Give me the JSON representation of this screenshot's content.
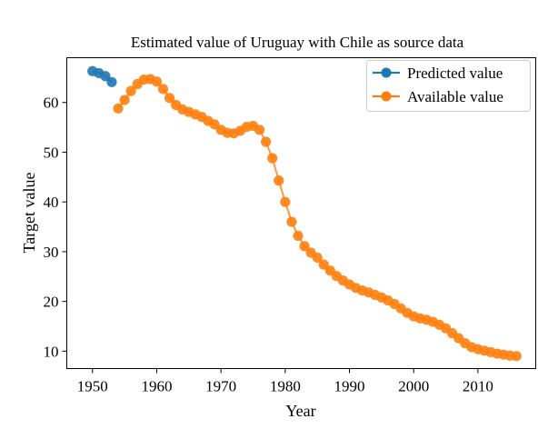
{
  "chart_data": {
    "type": "line",
    "title": "Estimated value of Uruguay with Chile as source data",
    "xlabel": "Year",
    "ylabel": "Target value",
    "xlim": [
      1946,
      2019
    ],
    "ylim": [
      6.5,
      69
    ],
    "xticks": [
      1950,
      1960,
      1970,
      1980,
      1990,
      2000,
      2010
    ],
    "yticks": [
      10,
      20,
      30,
      40,
      50,
      60
    ],
    "grid": false,
    "legend_position": "top-right",
    "series": [
      {
        "name": "Predicted value",
        "color": "#1f77b4",
        "marker": "circle",
        "x": [
          1950,
          1951,
          1952,
          1953
        ],
        "y": [
          66.3,
          65.9,
          65.3,
          64.1
        ]
      },
      {
        "name": "Available value",
        "color": "#ff7f0e",
        "marker": "circle",
        "x": [
          1954,
          1955,
          1956,
          1957,
          1958,
          1959,
          1960,
          1961,
          1962,
          1963,
          1964,
          1965,
          1966,
          1967,
          1968,
          1969,
          1970,
          1971,
          1972,
          1973,
          1974,
          1975,
          1976,
          1977,
          1978,
          1979,
          1980,
          1981,
          1982,
          1983,
          1984,
          1985,
          1986,
          1987,
          1988,
          1989,
          1990,
          1991,
          1992,
          1993,
          1994,
          1995,
          1996,
          1997,
          1998,
          1999,
          2000,
          2001,
          2002,
          2003,
          2004,
          2005,
          2006,
          2007,
          2008,
          2009,
          2010,
          2011,
          2012,
          2013,
          2014,
          2015,
          2016
        ],
        "y": [
          58.8,
          60.5,
          62.3,
          63.7,
          64.6,
          64.7,
          64.2,
          62.7,
          60.9,
          59.5,
          58.6,
          58.1,
          57.6,
          57.1,
          56.3,
          55.6,
          54.5,
          53.9,
          53.8,
          54.3,
          55.1,
          55.3,
          54.5,
          52.1,
          48.8,
          44.3,
          40.0,
          36.0,
          33.2,
          31.1,
          29.8,
          28.8,
          27.4,
          26.2,
          25.1,
          24.2,
          23.4,
          22.7,
          22.2,
          21.8,
          21.3,
          20.8,
          20.2,
          19.5,
          18.6,
          17.7,
          17.0,
          16.6,
          16.3,
          15.9,
          15.3,
          14.6,
          13.6,
          12.6,
          11.6,
          10.8,
          10.4,
          10.1,
          9.8,
          9.5,
          9.3,
          9.1,
          9.0
        ]
      }
    ]
  }
}
